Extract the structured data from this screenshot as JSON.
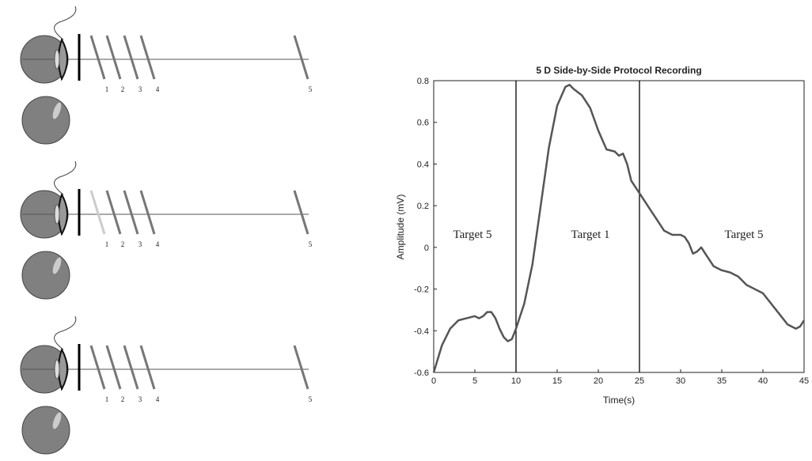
{
  "diagram": {
    "panels": [
      {
        "target_labels": [
          "1",
          "2",
          "3",
          "4",
          "5"
        ]
      },
      {
        "target_labels": [
          "1",
          "2",
          "3",
          "4",
          "5"
        ]
      },
      {
        "target_labels": [
          "1",
          "2",
          "3",
          "4",
          "5"
        ]
      }
    ]
  },
  "chart_data": {
    "type": "line",
    "title": "5 D Side-by-Side Protocol Recording",
    "x_label": "Time(s)",
    "y_label": "Amplitude (mV)",
    "xlim": [
      0,
      45
    ],
    "ylim": [
      -0.6,
      0.8
    ],
    "xticks": [
      0,
      5,
      10,
      15,
      20,
      25,
      30,
      35,
      40,
      45
    ],
    "yticks": [
      -0.6,
      -0.4,
      -0.2,
      0,
      0.2,
      0.4,
      0.6,
      0.8
    ],
    "vlines": [
      10,
      25
    ],
    "annotations": [
      "Target 5",
      "Target 1",
      "Target 5"
    ],
    "series": [
      {
        "color": "#555555",
        "x": [
          0,
          1,
          2,
          3,
          4,
          5,
          5.5,
          6,
          6.5,
          7,
          7.5,
          8,
          8.5,
          9,
          9.5,
          10,
          11,
          12,
          13,
          14,
          15,
          16,
          16.5,
          17,
          18,
          19,
          20,
          21,
          22,
          22.5,
          23,
          23.5,
          24,
          25,
          26,
          27,
          28,
          29,
          30,
          30.5,
          31,
          31.5,
          32,
          32.5,
          33,
          34,
          35,
          36,
          37,
          38,
          39,
          40,
          41,
          42,
          43,
          44,
          44.5,
          45
        ],
        "values": [
          -0.6,
          -0.47,
          -0.39,
          -0.35,
          -0.34,
          -0.33,
          -0.34,
          -0.33,
          -0.31,
          -0.31,
          -0.34,
          -0.39,
          -0.43,
          -0.45,
          -0.44,
          -0.39,
          -0.27,
          -0.08,
          0.2,
          0.48,
          0.68,
          0.77,
          0.78,
          0.76,
          0.73,
          0.67,
          0.56,
          0.47,
          0.46,
          0.44,
          0.45,
          0.4,
          0.32,
          0.26,
          0.2,
          0.14,
          0.08,
          0.06,
          0.06,
          0.05,
          0.02,
          -0.03,
          -0.02,
          0,
          -0.03,
          -0.09,
          -0.11,
          -0.12,
          -0.14,
          -0.18,
          -0.2,
          -0.22,
          -0.27,
          -0.32,
          -0.37,
          -0.39,
          -0.38,
          -0.35
        ]
      }
    ]
  }
}
